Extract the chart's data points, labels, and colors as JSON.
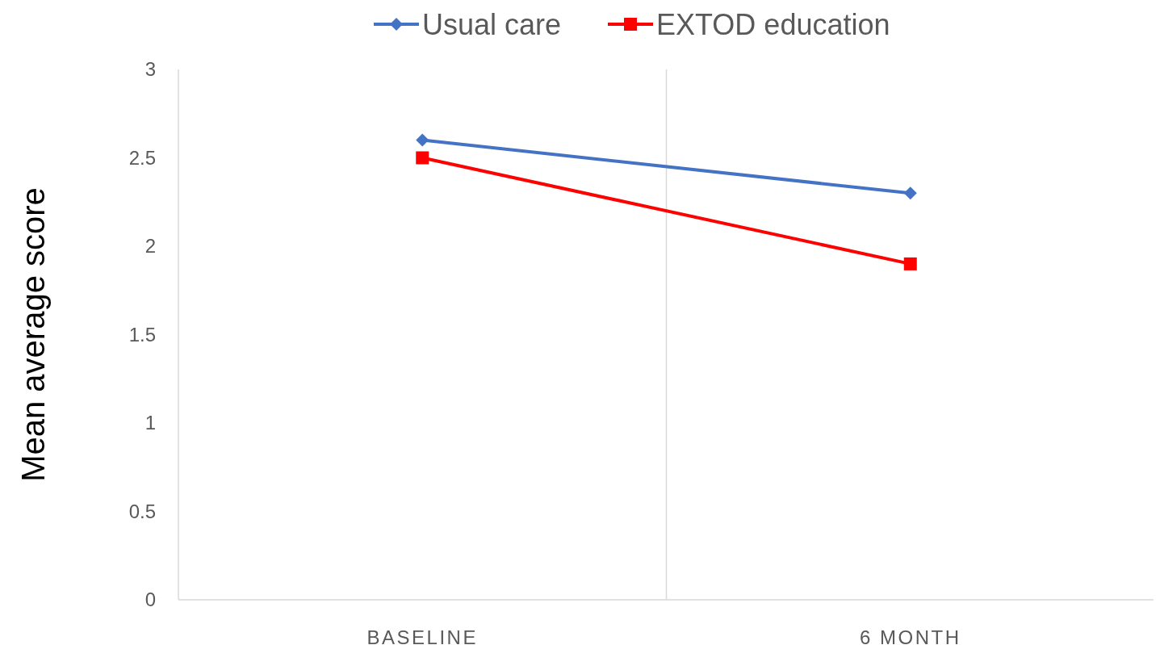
{
  "chart_data": {
    "type": "line",
    "ylabel": "Mean  average score",
    "categories": [
      "BASELINE",
      "6 MONTH"
    ],
    "series": [
      {
        "name": "Usual care",
        "color": "#4472c4",
        "values": [
          2.6,
          2.3
        ],
        "marker": "diamond"
      },
      {
        "name": "EXTOD education",
        "color": "#ff0000",
        "values": [
          2.5,
          1.9
        ],
        "marker": "square"
      }
    ],
    "ylim": [
      0,
      3
    ],
    "yticks": [
      0,
      0.5,
      1,
      1.5,
      2,
      2.5,
      3
    ],
    "grid": "x",
    "legend": "top"
  }
}
